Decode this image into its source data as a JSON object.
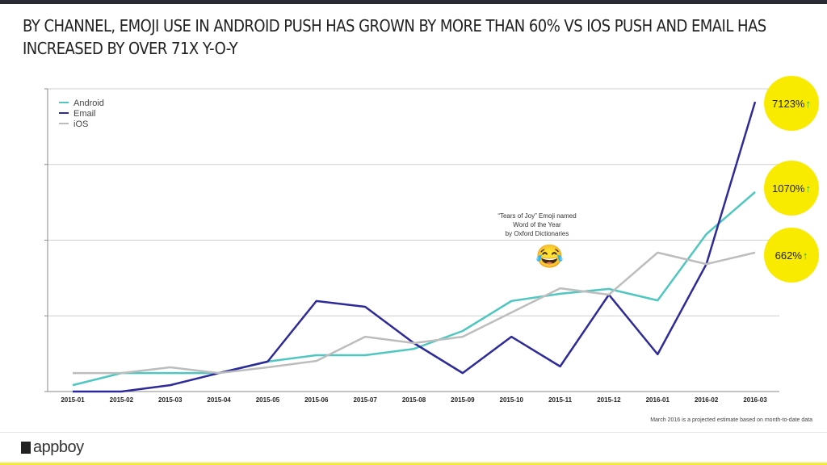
{
  "title": "BY CHANNEL, EMOJI USE IN ANDROID PUSH HAS GROWN BY MORE THAN 60% VS IOS PUSH AND EMAIL HAS INCREASED BY OVER 71X Y-O-Y",
  "chart_data": {
    "type": "line",
    "categories": [
      "2015-01",
      "2015-02",
      "2015-03",
      "2015-04",
      "2015-05",
      "2015-06",
      "2015-07",
      "2015-08",
      "2015-09",
      "2015-10",
      "2015-11",
      "2015-12",
      "2016-01",
      "2016-02",
      "2016-03"
    ],
    "ylim": [
      0,
      100
    ],
    "grid": true,
    "legend": "top-left",
    "series": [
      {
        "name": "Android",
        "color": "#4fc7c0",
        "values": [
          2.1,
          6.1,
          6.1,
          6.1,
          9.9,
          12,
          12,
          14.1,
          20,
          29.9,
          32.3,
          33.9,
          30.1,
          52,
          65.9
        ]
      },
      {
        "name": "Email",
        "color": "#2e2a9a",
        "values": [
          0,
          0,
          2.1,
          6.1,
          9.9,
          29.9,
          28,
          16,
          6.1,
          18.1,
          8.3,
          32,
          12.3,
          42.1,
          95.7
        ]
      },
      {
        "name": "iOS",
        "color": "#bdbdbd",
        "values": [
          6.1,
          6.1,
          8,
          6.1,
          8,
          10.1,
          18.1,
          16,
          18.1,
          26.1,
          34.1,
          32,
          45.9,
          42.1,
          45.9
        ]
      }
    ],
    "annotation": "“Tears of Joy” Emoji named Word of the Year by Oxford Dictionaries",
    "growth_labels": [
      {
        "series": "Email",
        "text": "7123%"
      },
      {
        "series": "Android",
        "text": "1070%"
      },
      {
        "series": "iOS",
        "text": "662%"
      }
    ]
  },
  "annotation_lines": [
    "“Tears of Joy” Emoji named",
    "Word of the Year",
    "by Oxford Dictionaries"
  ],
  "emoji": "😂",
  "arrow": "↑",
  "footnote": "March 2016 is a projected estimate based on month-to-date data",
  "logo_text": "appboy",
  "colors": {
    "bubble": "#f9eb00",
    "arrow": "#1db34a",
    "accent_bar": "#f3ea3a"
  }
}
